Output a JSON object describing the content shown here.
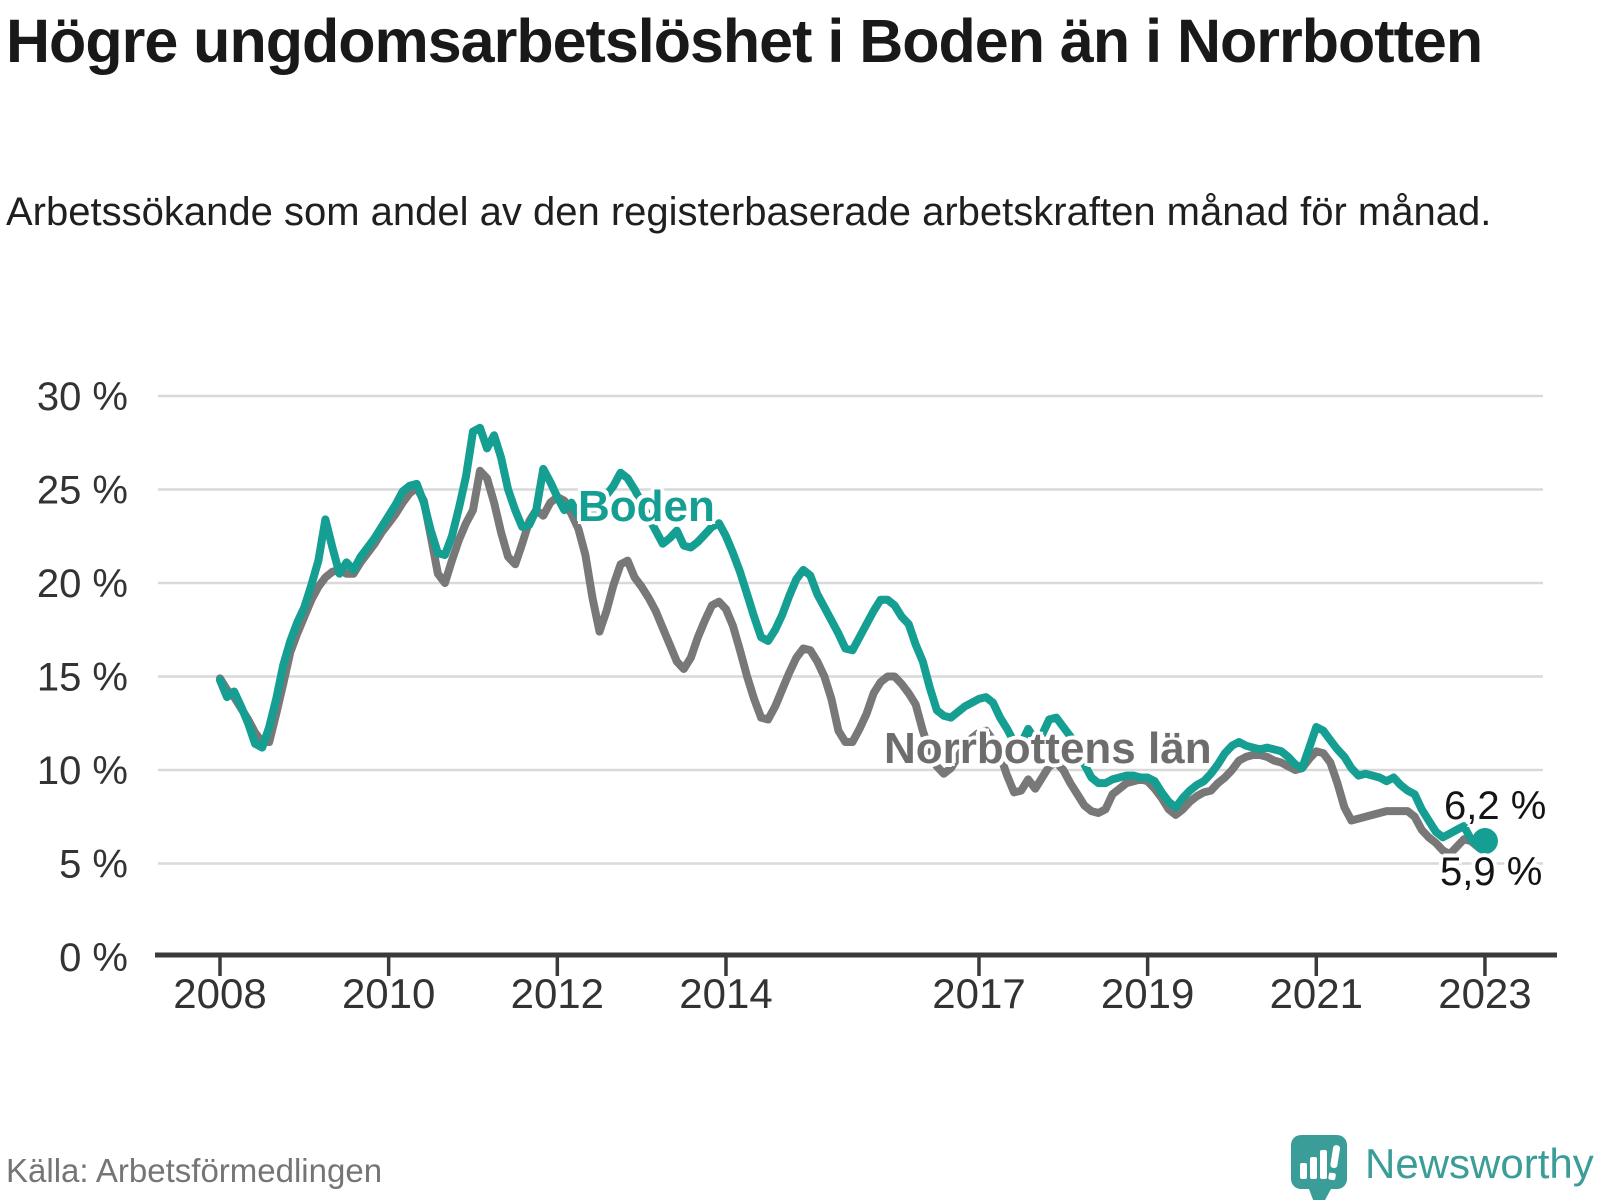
{
  "header": {
    "title": "Högre ungdomsarbetslöshet i Boden än i Norrbotten",
    "subtitle": "Arbetssökande som andel av den registerbaserade arbetskraften månad för månad."
  },
  "chart_data": {
    "type": "line",
    "title": "Högre ungdomsarbetslöshet i Boden än i Norrbotten",
    "unit": "%",
    "frequency": "monthly",
    "x_start": {
      "year": 2008,
      "month": 1
    },
    "x_end": {
      "year": 2023,
      "month": 1
    },
    "ylim": [
      0,
      30
    ],
    "grid": true,
    "legend_position": "inline-labels",
    "y_axis": {
      "ticks": [
        {
          "value": 0,
          "label": "0 %"
        },
        {
          "value": 5,
          "label": "5 %"
        },
        {
          "value": 10,
          "label": "10 %"
        },
        {
          "value": 15,
          "label": "15 %"
        },
        {
          "value": 20,
          "label": "20 %"
        },
        {
          "value": 25,
          "label": "25 %"
        },
        {
          "value": 30,
          "label": "30 %"
        }
      ]
    },
    "x_axis": {
      "ticks": [
        {
          "year": 2008,
          "label": "2008"
        },
        {
          "year": 2010,
          "label": "2010"
        },
        {
          "year": 2012,
          "label": "2012"
        },
        {
          "year": 2014,
          "label": "2014"
        },
        {
          "year": 2017,
          "label": "2017"
        },
        {
          "year": 2019,
          "label": "2019"
        },
        {
          "year": 2021,
          "label": "2021"
        },
        {
          "year": 2023,
          "label": "2023"
        }
      ]
    },
    "series": [
      {
        "name": "Boden",
        "color": "#159e92",
        "end_label": "6,2 %",
        "end_value": 6.2,
        "end_dot": true,
        "values": [
          14.8,
          13.9,
          14.2,
          13.4,
          12.5,
          11.4,
          11.2,
          12.3,
          13.8,
          15.6,
          16.9,
          17.9,
          18.7,
          19.9,
          21.2,
          23.4,
          21.9,
          20.5,
          21.1,
          20.7,
          21.4,
          21.9,
          22.4,
          23.0,
          23.6,
          24.2,
          24.9,
          25.2,
          25.3,
          24.3,
          22.8,
          21.6,
          21.5,
          22.5,
          24.0,
          25.7,
          28.1,
          28.3,
          27.2,
          27.9,
          26.7,
          25.0,
          23.9,
          23.0,
          23.1,
          23.9,
          26.1,
          25.4,
          24.6,
          23.9,
          24.3,
          23.6,
          23.5,
          23.8,
          24.2,
          24.7,
          25.2,
          25.9,
          25.6,
          25.0,
          24.3,
          23.5,
          22.8,
          22.1,
          22.4,
          22.8,
          22.0,
          21.9,
          22.2,
          22.6,
          23.0,
          23.2,
          22.5,
          21.6,
          20.6,
          19.4,
          18.2,
          17.1,
          16.9,
          17.5,
          18.3,
          19.3,
          20.2,
          20.7,
          20.4,
          19.4,
          18.7,
          18.0,
          17.3,
          16.5,
          16.4,
          17.1,
          17.8,
          18.5,
          19.1,
          19.1,
          18.8,
          18.2,
          17.8,
          16.7,
          15.8,
          14.4,
          13.2,
          12.9,
          12.8,
          13.1,
          13.4,
          13.6,
          13.8,
          13.9,
          13.6,
          12.8,
          12.2,
          11.5,
          11.4,
          12.2,
          11.6,
          11.9,
          12.7,
          12.8,
          12.3,
          11.8,
          11.1,
          10.3,
          9.6,
          9.3,
          9.3,
          9.5,
          9.6,
          9.7,
          9.7,
          9.6,
          9.6,
          9.4,
          8.8,
          8.3,
          8.0,
          8.5,
          8.9,
          9.2,
          9.4,
          9.8,
          10.3,
          10.9,
          11.3,
          11.5,
          11.3,
          11.2,
          11.1,
          11.2,
          11.1,
          11.0,
          10.7,
          10.3,
          10.1,
          11.2,
          12.3,
          12.1,
          11.6,
          11.1,
          10.7,
          10.1,
          9.7,
          9.8,
          9.7,
          9.6,
          9.4,
          9.6,
          9.2,
          8.9,
          8.7,
          7.9,
          7.3,
          6.7,
          6.4,
          6.6,
          6.8,
          7.0,
          6.3,
          6.0,
          6.2
        ]
      },
      {
        "name": "Norrbottens län",
        "color": "#787878",
        "end_label": "5,9 %",
        "end_value": 5.9,
        "end_dot": false,
        "values": [
          14.9,
          14.3,
          13.9,
          13.3,
          12.7,
          12.0,
          11.5,
          11.5,
          13.0,
          14.6,
          16.3,
          17.3,
          18.2,
          19.1,
          19.8,
          20.3,
          20.6,
          20.7,
          20.5,
          20.5,
          21.1,
          21.6,
          22.1,
          22.7,
          23.2,
          23.7,
          24.3,
          24.8,
          25.1,
          24.4,
          22.5,
          20.5,
          20.0,
          21.2,
          22.3,
          23.2,
          23.9,
          26.0,
          25.6,
          24.3,
          22.7,
          21.4,
          21.0,
          22.1,
          23.3,
          23.9,
          23.6,
          24.3,
          24.6,
          24.4,
          23.7,
          22.9,
          21.5,
          19.2,
          17.4,
          18.5,
          19.9,
          21.0,
          21.2,
          20.3,
          19.8,
          19.2,
          18.5,
          17.6,
          16.7,
          15.8,
          15.4,
          16.0,
          17.1,
          18.0,
          18.8,
          19.0,
          18.6,
          17.7,
          16.4,
          15.0,
          13.8,
          12.8,
          12.7,
          13.4,
          14.3,
          15.2,
          16.0,
          16.5,
          16.4,
          15.8,
          15.0,
          13.8,
          12.1,
          11.5,
          11.5,
          12.2,
          13.0,
          14.1,
          14.7,
          15.0,
          15.0,
          14.6,
          14.1,
          13.5,
          12.1,
          11.0,
          10.2,
          9.8,
          10.1,
          10.7,
          11.3,
          11.7,
          12.0,
          12.1,
          11.6,
          10.8,
          9.7,
          8.8,
          8.9,
          9.5,
          9.0,
          9.6,
          10.2,
          10.4,
          10.0,
          9.3,
          8.7,
          8.1,
          7.8,
          7.7,
          7.9,
          8.7,
          9.0,
          9.3,
          9.4,
          9.5,
          9.4,
          9.0,
          8.5,
          7.9,
          7.6,
          7.9,
          8.3,
          8.6,
          8.8,
          8.9,
          9.3,
          9.6,
          10.0,
          10.5,
          10.7,
          10.8,
          10.8,
          10.7,
          10.5,
          10.4,
          10.2,
          10.0,
          10.1,
          10.6,
          11.0,
          10.9,
          10.4,
          9.3,
          8.0,
          7.3,
          7.4,
          7.5,
          7.6,
          7.7,
          7.8,
          7.8,
          7.8,
          7.8,
          7.5,
          6.8,
          6.4,
          6.1,
          5.7,
          5.5,
          5.9,
          6.3,
          6.2,
          5.9,
          5.9
        ]
      }
    ]
  },
  "colors": {
    "accent_teal": "#159e92",
    "series_gray": "#787878",
    "gridline": "#d9d9d9",
    "axis": "#3a3a3a",
    "title_text": "#191919",
    "tick_text": "#333333",
    "source_text": "#757575",
    "logo_teal": "#3a9d97"
  },
  "footer": {
    "source": "Källa: Arbetsförmedlingen",
    "brand": "Newsworthy"
  }
}
